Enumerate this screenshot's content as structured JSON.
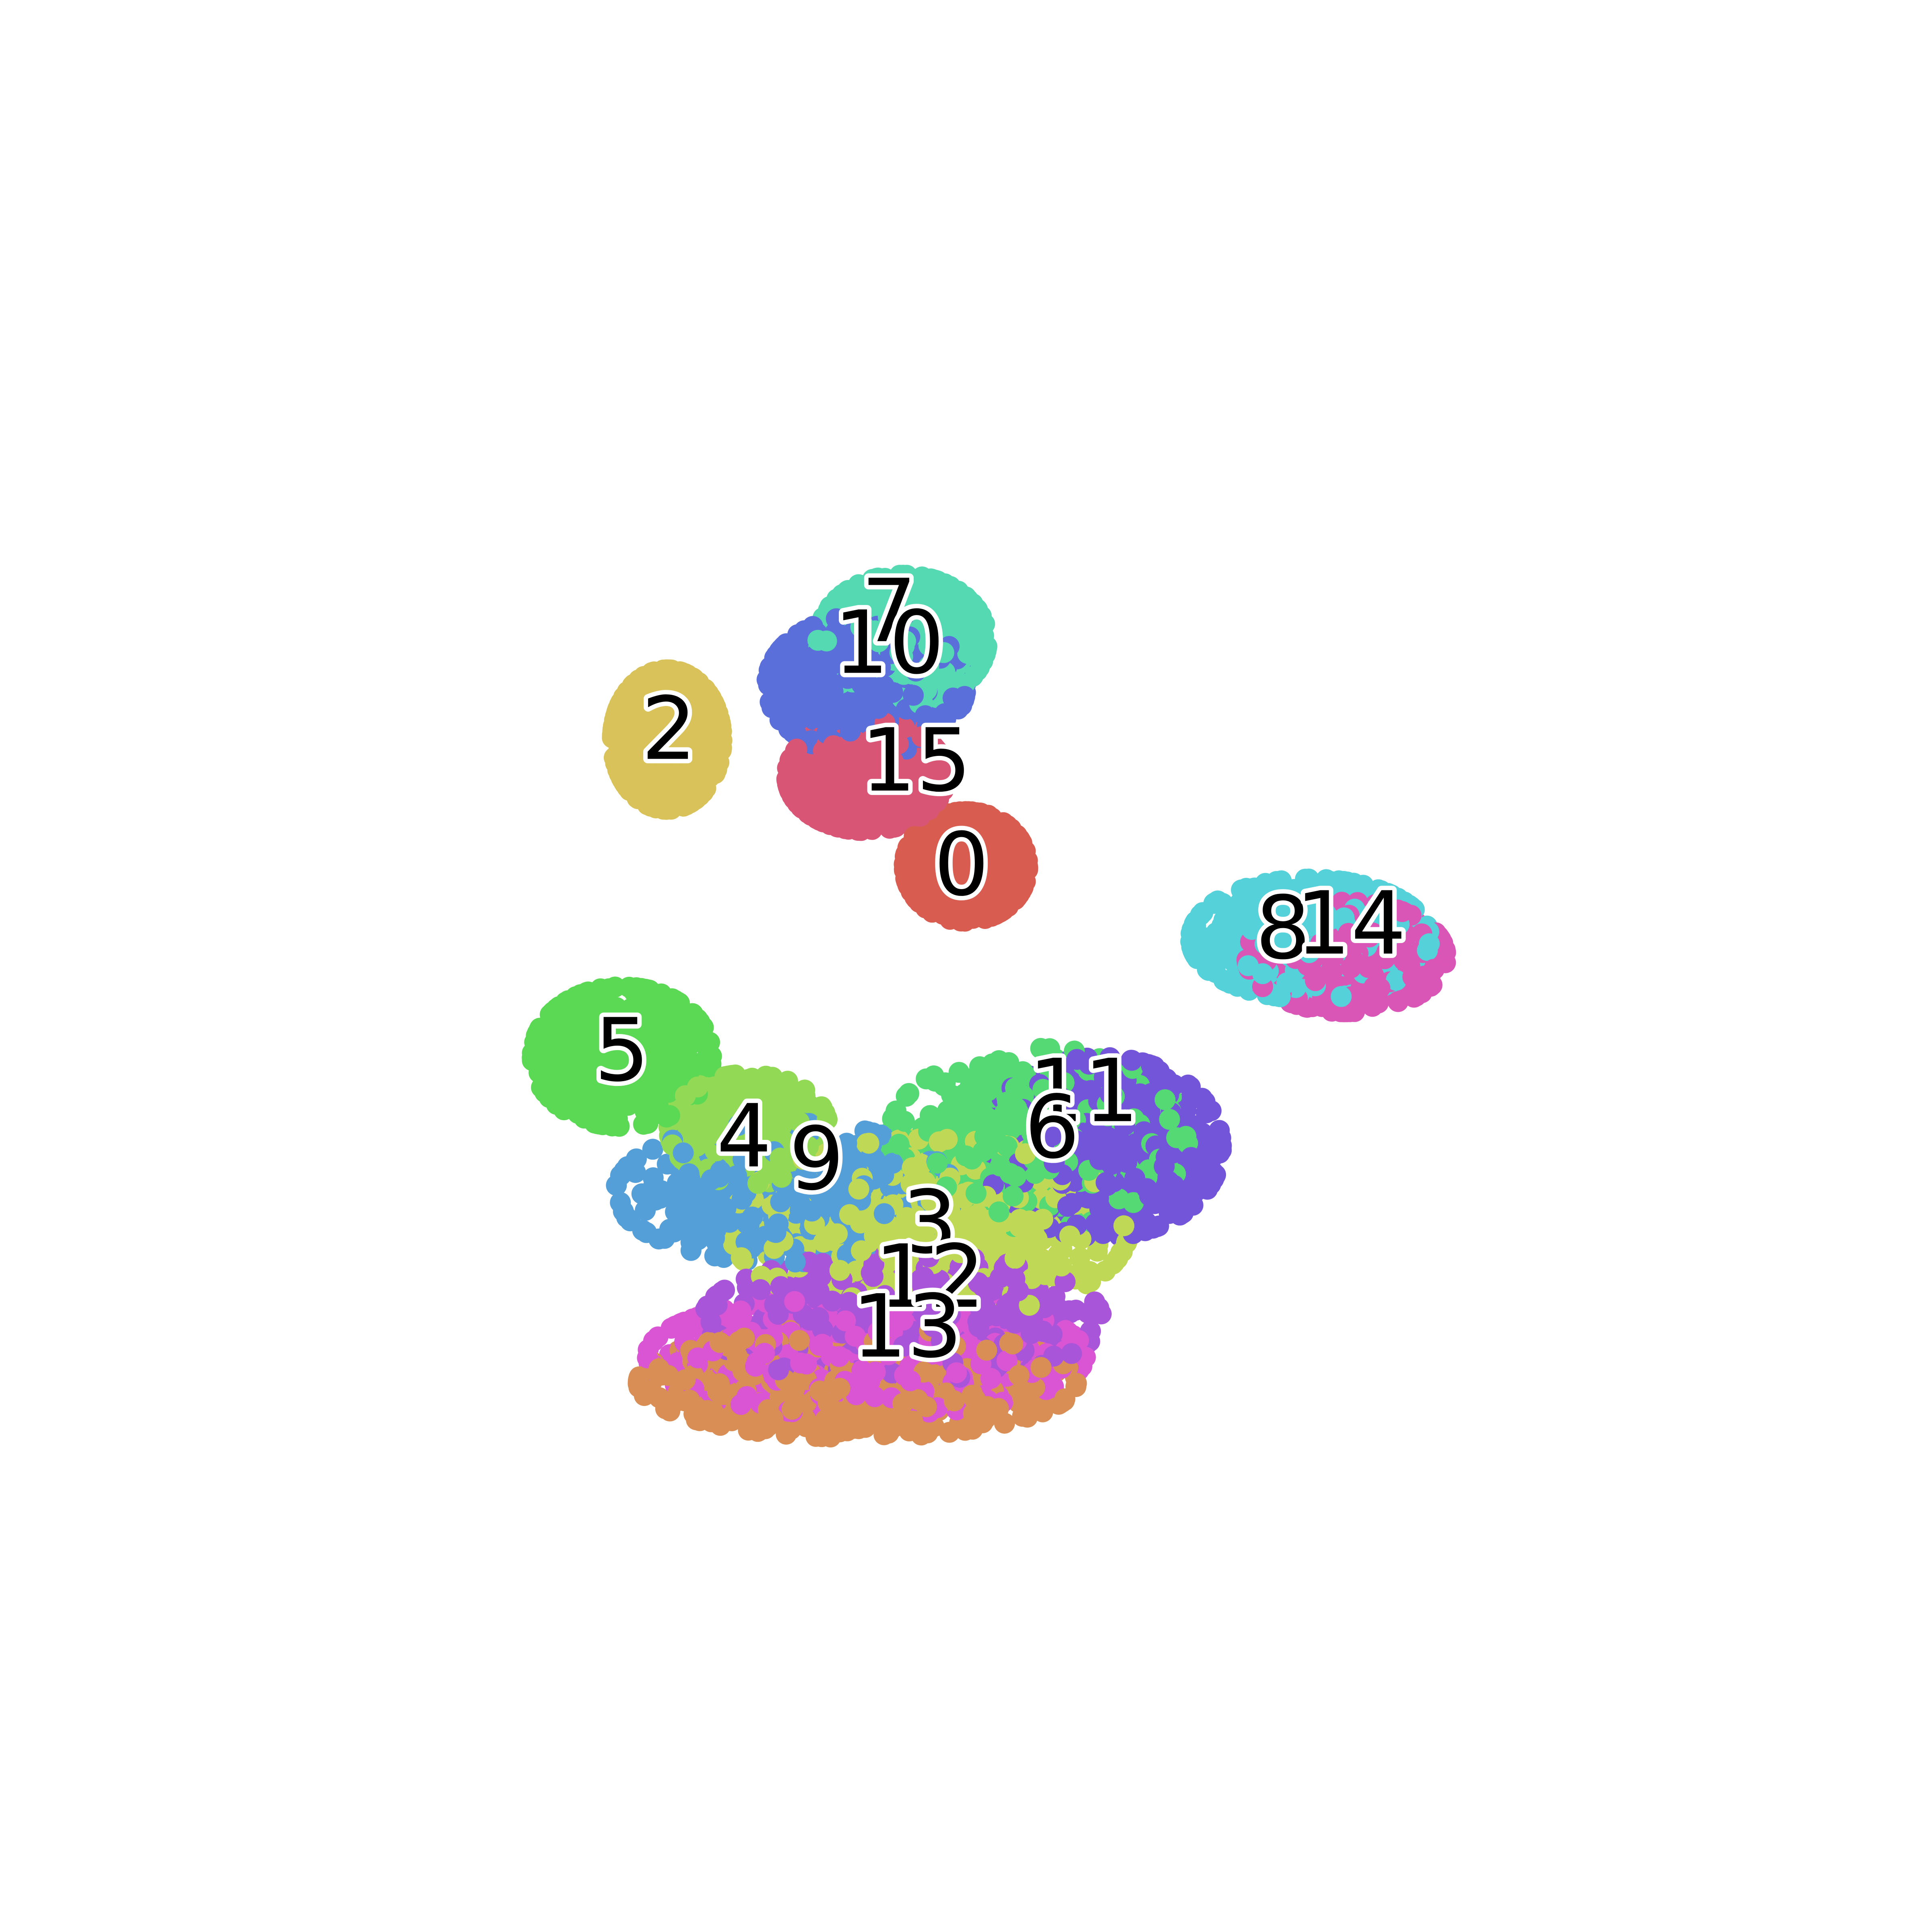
{
  "chart_data": {
    "type": "scatter",
    "title": "",
    "xlabel": "",
    "ylabel": "",
    "axes_visible": false,
    "grid": false,
    "legend": "none",
    "xlim": [
      0,
      16
    ],
    "ylim": [
      0,
      16
    ],
    "clusters": [
      {
        "label": "0",
        "color": "#d95c50",
        "center": [
          8.0,
          9.1
        ],
        "spread": [
          0.62,
          0.55
        ],
        "count": 1000
      },
      {
        "label": "1",
        "color": "#d95575",
        "center": [
          6.9,
          10.1
        ],
        "spread": [
          0.8,
          0.55
        ],
        "count": 900
      },
      {
        "label": "2",
        "color": "#d8c259",
        "center": [
          4.7,
          10.5
        ],
        "spread": [
          0.55,
          0.7
        ],
        "count": 1000
      },
      {
        "label": "3",
        "color": "#bfd855",
        "center": [
          7.6,
          5.1
        ],
        "spread": [
          2.0,
          0.9
        ],
        "count": 650
      },
      {
        "label": "4",
        "color": "#92d955",
        "center": [
          5.6,
          6.2
        ],
        "spread": [
          0.8,
          0.55
        ],
        "count": 650
      },
      {
        "label": "5",
        "color": "#5bd955",
        "center": [
          4.2,
          7.0
        ],
        "spread": [
          0.9,
          0.7
        ],
        "count": 850
      },
      {
        "label": "6",
        "color": "#55d975",
        "center": [
          8.8,
          6.1
        ],
        "spread": [
          1.5,
          0.9
        ],
        "count": 550
      },
      {
        "label": "7",
        "color": "#55d9b2",
        "center": [
          7.3,
          11.6
        ],
        "spread": [
          0.85,
          0.65
        ],
        "count": 800
      },
      {
        "label": "8",
        "color": "#55d1d9",
        "center": [
          11.8,
          8.3
        ],
        "spread": [
          1.2,
          0.6
        ],
        "count": 700
      },
      {
        "label": "9",
        "color": "#559fd9",
        "center": [
          6.0,
          5.5
        ],
        "spread": [
          1.7,
          0.7
        ],
        "count": 550
      },
      {
        "label": "10",
        "color": "#5a6fd9",
        "center": [
          6.9,
          11.1
        ],
        "spread": [
          1.0,
          0.7
        ],
        "count": 750
      },
      {
        "label": "11",
        "color": "#7255d9",
        "center": [
          9.5,
          6.0
        ],
        "spread": [
          1.2,
          0.9
        ],
        "count": 800
      },
      {
        "label": "12",
        "color": "#a955d9",
        "center": [
          7.3,
          4.1
        ],
        "spread": [
          2.0,
          0.65
        ],
        "count": 650
      },
      {
        "label": "13",
        "color": "#d955d3",
        "center": [
          6.9,
          3.7
        ],
        "spread": [
          2.2,
          0.6
        ],
        "count": 800
      },
      {
        "label": "14",
        "color": "#d955b6",
        "center": [
          12.2,
          8.1
        ],
        "spread": [
          1.0,
          0.55
        ],
        "count": 700
      },
      {
        "label": "15",
        "color": "#d98e55",
        "center": [
          6.8,
          3.4
        ],
        "spread": [
          2.2,
          0.55
        ],
        "count": 800
      }
    ],
    "labels": [
      {
        "text": "0",
        "x": 7.95,
        "y": 9.05
      },
      {
        "text": "2",
        "x": 4.72,
        "y": 10.55
      },
      {
        "text": "15",
        "x": 7.45,
        "y": 10.2
      },
      {
        "text": "7",
        "x": 7.15,
        "y": 11.85
      },
      {
        "text": "10",
        "x": 7.15,
        "y": 11.5
      },
      {
        "text": "8",
        "x": 11.5,
        "y": 8.35
      },
      {
        "text": "14",
        "x": 12.25,
        "y": 8.4
      },
      {
        "text": "5",
        "x": 4.2,
        "y": 7.0
      },
      {
        "text": "4",
        "x": 5.55,
        "y": 6.05
      },
      {
        "text": "9",
        "x": 6.35,
        "y": 5.8
      },
      {
        "text": "11",
        "x": 9.3,
        "y": 6.55
      },
      {
        "text": "6",
        "x": 8.95,
        "y": 6.15
      },
      {
        "text": "3",
        "x": 7.6,
        "y": 5.1
      },
      {
        "text": "12",
        "x": 7.6,
        "y": 4.5
      },
      {
        "text": "13",
        "x": 7.35,
        "y": 3.95
      }
    ]
  }
}
